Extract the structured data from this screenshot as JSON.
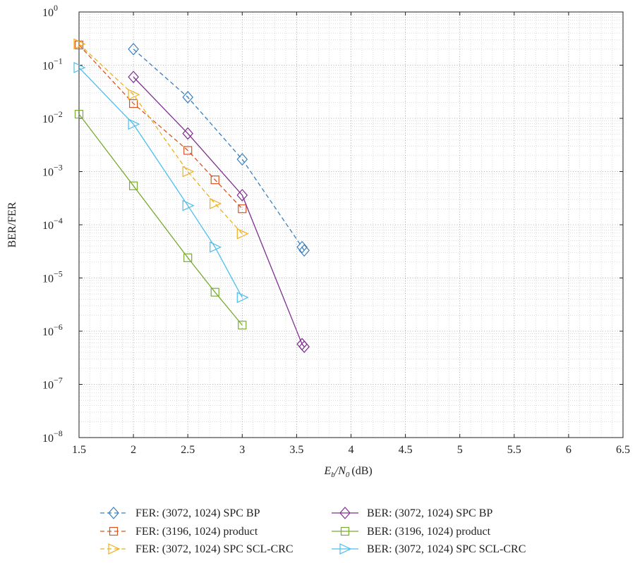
{
  "chart_data": {
    "type": "line",
    "xlabel": "E_b/N_0 (dB)",
    "xlabel_parts": {
      "main": "E",
      "sub1": "b",
      "mid": "/N",
      "sub2": "0",
      "unit": "(dB)"
    },
    "ylabel": "BER/FER",
    "xlim": [
      1.5,
      6.5
    ],
    "ylim_log10": [
      -8,
      0
    ],
    "y_scale": "log",
    "grid": true,
    "legend_position": "bottom",
    "x_ticks": [
      "1.5",
      "2",
      "2.5",
      "3",
      "3.5",
      "4",
      "4.5",
      "5",
      "5.5",
      "6",
      "6.5"
    ],
    "y_tick_exponents": [
      "0",
      "−1",
      "−2",
      "−3",
      "−4",
      "−5",
      "−6",
      "−7",
      "−8"
    ],
    "y_tick_base": "10",
    "series": [
      {
        "name": "FER: (3072, 1024) SPC BP",
        "color": "#3a7fbf",
        "dash": "dashed",
        "marker": "diamond",
        "x": [
          2.0,
          2.5,
          3.0,
          3.55,
          3.57
        ],
        "y": [
          0.2,
          0.025,
          0.0017,
          3.8e-05,
          3.3e-05
        ]
      },
      {
        "name": "FER: (3196, 1024) product",
        "color": "#d9541e",
        "dash": "dashed",
        "marker": "square",
        "x": [
          1.5,
          2.0,
          2.5,
          2.75,
          3.0
        ],
        "y": [
          0.24,
          0.019,
          0.0025,
          0.0007,
          0.0002
        ]
      },
      {
        "name": "FER: (3072, 1024) SPC SCL-CRC",
        "color": "#edb120",
        "dash": "dashed",
        "marker": "triangle-right",
        "x": [
          1.5,
          2.0,
          2.5,
          2.75,
          3.0
        ],
        "y": [
          0.25,
          0.028,
          0.001,
          0.00025,
          6.8e-05
        ]
      },
      {
        "name": "BER: (3072, 1024) SPC BP",
        "color": "#7e2f8e",
        "dash": "solid",
        "marker": "diamond",
        "x": [
          2.0,
          2.5,
          3.0,
          3.55,
          3.57
        ],
        "y": [
          0.06,
          0.0052,
          0.00036,
          5.7e-07,
          5.1e-07
        ]
      },
      {
        "name": "BER: (3196, 1024) product",
        "color": "#77ac30",
        "dash": "solid",
        "marker": "square",
        "x": [
          1.5,
          2.0,
          2.5,
          2.75,
          3.0
        ],
        "y": [
          0.012,
          0.00054,
          2.4e-05,
          5.4e-06,
          1.3e-06
        ]
      },
      {
        "name": "BER: (3072, 1024) SPC SCL-CRC",
        "color": "#4dbeee",
        "dash": "solid",
        "marker": "triangle-right",
        "x": [
          1.5,
          2.0,
          2.5,
          2.75,
          3.0
        ],
        "y": [
          0.09,
          0.0078,
          0.00023,
          3.8e-05,
          4.3e-06
        ]
      }
    ]
  }
}
